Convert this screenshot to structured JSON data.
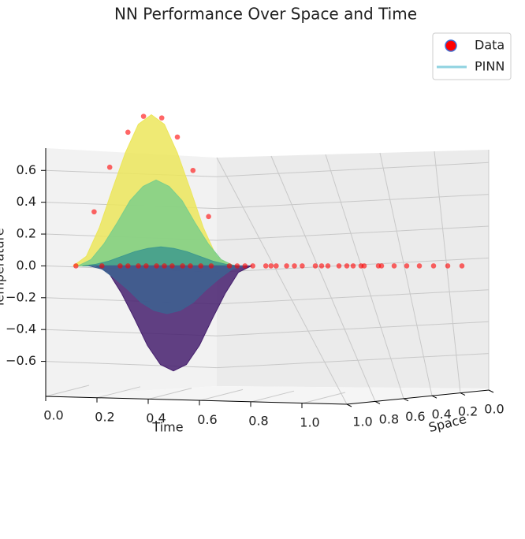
{
  "chart_data": {
    "type": "surface3d",
    "title": "NN Performance Over Space and Time",
    "xlabel": "Time",
    "ylabel": "Space",
    "zlabel": "Temperature",
    "xlim": [
      0,
      1
    ],
    "ylim": [
      0,
      1
    ],
    "zlim": [
      -0.82,
      0.74
    ],
    "xticks": [
      {
        "value": 0,
        "label": "0.0"
      },
      0.2,
      0.4,
      0.6,
      0.8,
      {
        "value": 1,
        "label": "1.0"
      }
    ],
    "yticks": [
      {
        "value": 1,
        "label": "1.0"
      },
      0.8,
      0.6,
      0.4,
      0.2,
      {
        "value": 0,
        "label": "0.0"
      }
    ],
    "zticks": [
      {
        "value": -0.6,
        "label": "−0.6"
      },
      {
        "value": -0.4,
        "label": "−0.4"
      },
      {
        "value": -0.2,
        "label": "−0.2"
      },
      {
        "value": 0,
        "label": "0.0"
      },
      0.2,
      0.4,
      0.6
    ],
    "grid": true,
    "legend": "upper right",
    "surface": {
      "name": "PINN",
      "color": "#8fd3e0",
      "time": [
        0.1,
        0.15,
        0.2,
        0.25,
        0.3,
        0.35,
        0.4,
        0.45,
        0.5,
        0.55,
        0.6,
        0.65,
        0.7
      ],
      "space": [
        1.0,
        0.97,
        0.94,
        0.86,
        0.9
      ],
      "colors": [
        "#ece65c",
        "#7ccf8a",
        "#3f9a8d",
        "#46206e",
        "#3d6190"
      ],
      "temperature": [
        [
          0,
          0.06,
          0.24,
          0.48,
          0.71,
          0.89,
          0.95,
          0.89,
          0.71,
          0.48,
          0.24,
          0.06,
          0
        ],
        [
          0,
          0.04,
          0.14,
          0.27,
          0.41,
          0.5,
          0.54,
          0.5,
          0.41,
          0.27,
          0.14,
          0.04,
          0
        ],
        [
          0,
          0.01,
          0.03,
          0.06,
          0.09,
          0.11,
          0.12,
          0.11,
          0.09,
          0.06,
          0.03,
          0.01,
          0
        ],
        [
          0,
          -0.04,
          -0.17,
          -0.33,
          -0.5,
          -0.62,
          -0.66,
          -0.62,
          -0.5,
          -0.33,
          -0.17,
          -0.04,
          0
        ],
        [
          0,
          -0.02,
          -0.08,
          -0.15,
          -0.23,
          -0.28,
          -0.3,
          -0.28,
          -0.23,
          -0.15,
          -0.08,
          -0.02,
          0
        ]
      ]
    },
    "points": {
      "name": "Data",
      "color": "#ff0000",
      "edgecolor": "#3b6fd6",
      "time": [
        0.18,
        0.24,
        0.31,
        0.37,
        0.44,
        0.5,
        0.56,
        0.62,
        0.11,
        0.21,
        0.28,
        0.31,
        0.35,
        0.38,
        0.42,
        0.45,
        0.48,
        0.52,
        0.55,
        0.59,
        0.63,
        0.7,
        0.73,
        0.76,
        0.79,
        0.84,
        0.86,
        0.88,
        0.92,
        0.95,
        0.98,
        1,
        1,
        1,
        1,
        1,
        1,
        1,
        1,
        1,
        1,
        1,
        1,
        1,
        1,
        1,
        1
      ],
      "space": [
        1,
        1,
        1,
        1,
        1,
        1,
        1,
        1,
        1,
        1,
        1,
        1,
        1,
        1,
        1,
        1,
        1,
        1,
        1,
        1,
        1,
        1,
        1,
        1,
        1,
        1,
        1,
        1,
        1,
        1,
        1,
        0.95,
        0.91,
        0.87,
        0.8,
        0.75,
        0.71,
        0.66,
        0.64,
        0.55,
        0.53,
        0.45,
        0.37,
        0.29,
        0.2,
        0.11,
        0.02
      ],
      "temperature": [
        0.34,
        0.62,
        0.84,
        0.94,
        0.93,
        0.81,
        0.6,
        0.31,
        0,
        0,
        0,
        0,
        0,
        0,
        0,
        0,
        0,
        0,
        0,
        0,
        0,
        0,
        0,
        0,
        0,
        0,
        0,
        0,
        0,
        0,
        0,
        0,
        0,
        0,
        0,
        0,
        0,
        0,
        0,
        0,
        0,
        0,
        0,
        0,
        0,
        0,
        0
      ]
    }
  }
}
